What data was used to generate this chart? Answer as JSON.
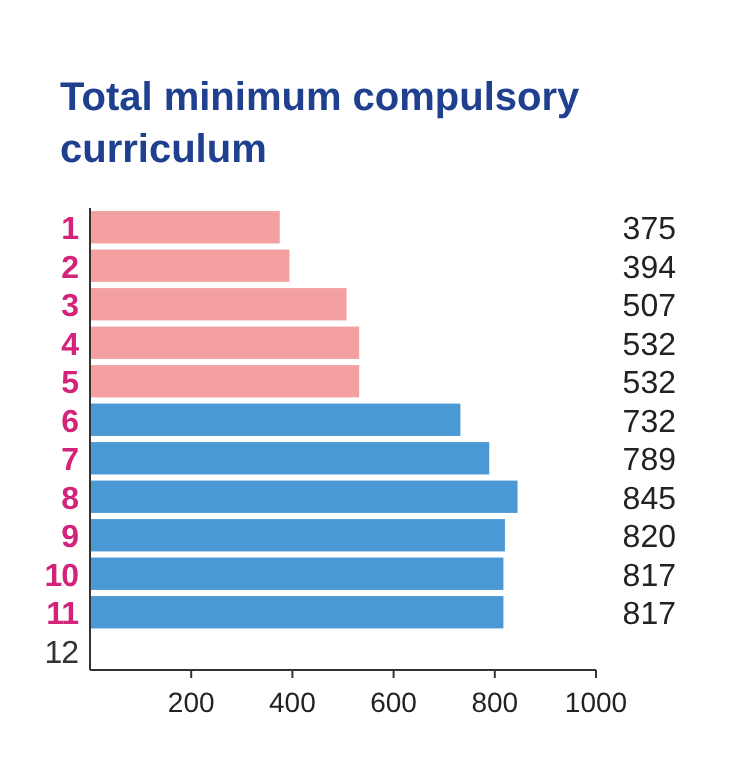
{
  "chart_data": {
    "type": "bar",
    "orientation": "horizontal",
    "title": "Total minimum compulsory curriculum",
    "categories": [
      "1",
      "2",
      "3",
      "4",
      "5",
      "6",
      "7",
      "8",
      "9",
      "10",
      "11",
      "12"
    ],
    "values": [
      375,
      394,
      507,
      532,
      532,
      732,
      789,
      845,
      820,
      817,
      817,
      null
    ],
    "colors": [
      "#f4a0a0",
      "#f4a0a0",
      "#f4a0a0",
      "#f4a0a0",
      "#f4a0a0",
      "#4a98d4",
      "#4a98d4",
      "#4a98d4",
      "#4a98d4",
      "#4a98d4",
      "#4a98d4",
      null
    ],
    "xlim": [
      0,
      1000
    ],
    "xticks": [
      200,
      400,
      600,
      800,
      1000
    ],
    "data_labels": true
  }
}
